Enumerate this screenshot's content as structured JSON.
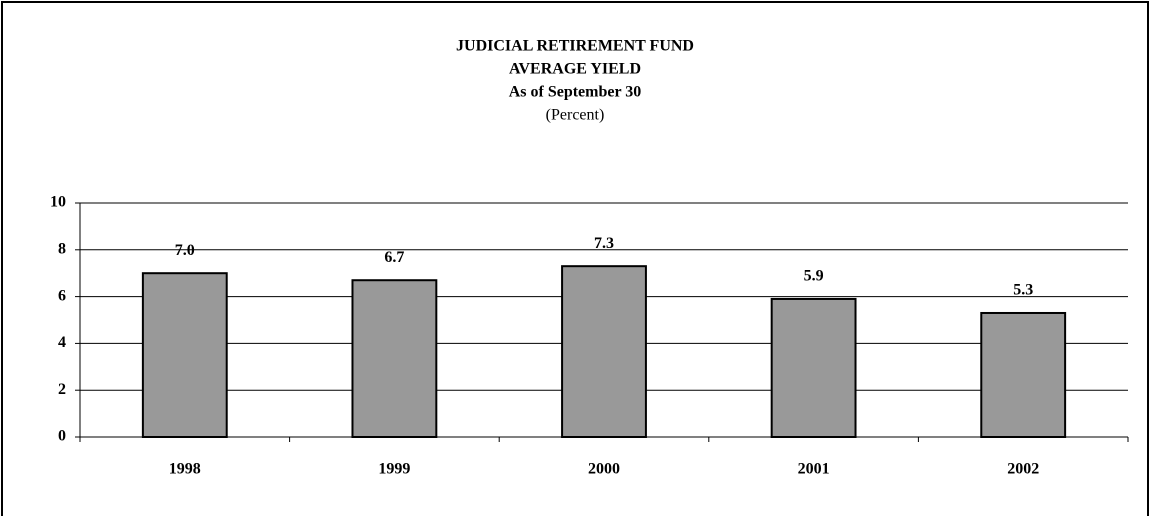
{
  "chart_data": {
    "type": "bar",
    "title": "JUDICIAL RETIREMENT FUND",
    "subtitle": "AVERAGE YIELD",
    "date_note": "As of September 30",
    "unit_label": "(Percent)",
    "categories": [
      "1998",
      "1999",
      "2000",
      "2001",
      "2002"
    ],
    "values": [
      7.0,
      6.7,
      7.3,
      5.9,
      5.3
    ],
    "value_labels": [
      "7.0",
      "6.7",
      "7.3",
      "5.9",
      "5.3"
    ],
    "color": "#999999",
    "ylim": [
      0,
      10
    ],
    "yticks": [
      0,
      2,
      4,
      6,
      8,
      10
    ],
    "grid": true
  }
}
